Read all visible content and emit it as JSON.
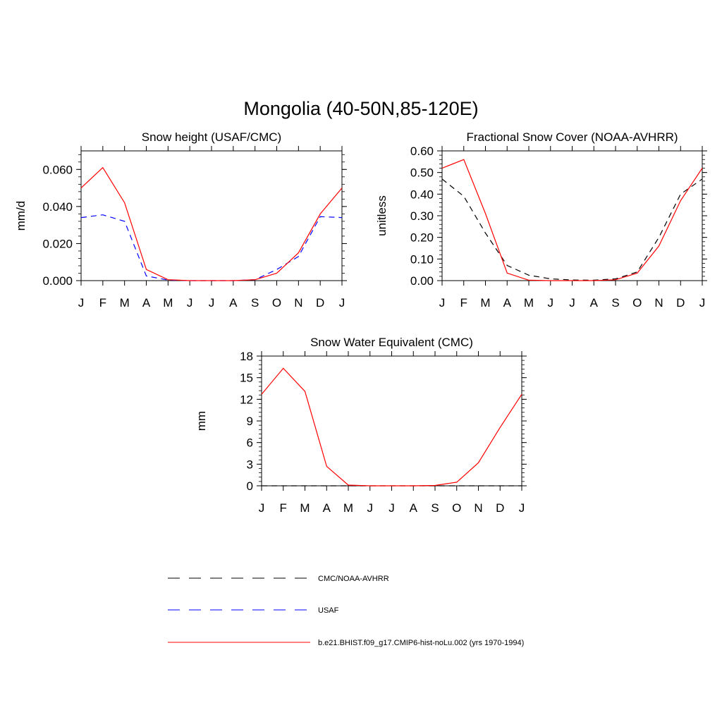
{
  "figure": {
    "title": "Mongolia (40-50N,85-120E)"
  },
  "legend": [
    {
      "label": "CMC/NOAA-AVHRR",
      "color": "#000000",
      "dashed": true
    },
    {
      "label": "USAF",
      "color": "#0000ff",
      "dashed": true
    },
    {
      "label": "b.e21.BHIST.f09_g17.CMIP6-hist-noLu.002 (yrs 1970-1994)",
      "color": "#ff0000",
      "dashed": false
    }
  ],
  "chart_data": [
    {
      "type": "line",
      "title": "Snow height (USAF/CMC)",
      "xlabel": "",
      "ylabel": "mm/d",
      "categories": [
        "J",
        "F",
        "M",
        "A",
        "M",
        "J",
        "J",
        "A",
        "S",
        "O",
        "N",
        "D",
        "J"
      ],
      "ylim": [
        0,
        0.07
      ],
      "yticks": [
        "0.000",
        "0.020",
        "0.040",
        "0.060"
      ],
      "ytick_values": [
        0,
        0.02,
        0.04,
        0.06
      ],
      "grid": false,
      "series": [
        {
          "name": "b.e21.BHIST.f09_g17.CMIP6-hist-noLu.002 (yrs 1970-1994)",
          "color": "#ff0000",
          "dashed": false,
          "values": [
            0.05,
            0.061,
            0.042,
            0.006,
            0.0005,
            0,
            0,
            0,
            0.0005,
            0.004,
            0.015,
            0.036,
            0.05
          ]
        },
        {
          "name": "USAF",
          "color": "#0000ff",
          "dashed": true,
          "values": [
            0.034,
            0.0355,
            0.032,
            0.0025,
            0.0003,
            0,
            0,
            0,
            0.0005,
            0.006,
            0.013,
            0.0345,
            0.034
          ]
        }
      ]
    },
    {
      "type": "line",
      "title": "Fractional Snow Cover (NOAA-AVHRR)",
      "xlabel": "",
      "ylabel": "unitless",
      "categories": [
        "J",
        "F",
        "M",
        "A",
        "M",
        "J",
        "J",
        "A",
        "S",
        "O",
        "N",
        "D",
        "J"
      ],
      "ylim": [
        0,
        0.6
      ],
      "yticks": [
        "0.00",
        "0.10",
        "0.20",
        "0.30",
        "0.40",
        "0.50",
        "0.60"
      ],
      "ytick_values": [
        0,
        0.1,
        0.2,
        0.3,
        0.4,
        0.5,
        0.6
      ],
      "grid": false,
      "series": [
        {
          "name": "b.e21.BHIST.f09_g17.CMIP6-hist-noLu.002 (yrs 1970-1994)",
          "color": "#ff0000",
          "dashed": false,
          "values": [
            0.52,
            0.56,
            0.31,
            0.035,
            0.002,
            0,
            0,
            0,
            0.004,
            0.035,
            0.16,
            0.37,
            0.52
          ]
        },
        {
          "name": "CMC/NOAA-AVHRR",
          "color": "#000000",
          "dashed": true,
          "values": [
            0.47,
            0.39,
            0.22,
            0.07,
            0.025,
            0.008,
            0.003,
            0.002,
            0.008,
            0.04,
            0.2,
            0.4,
            0.47
          ]
        }
      ]
    },
    {
      "type": "line",
      "title": "Snow Water Equivalent (CMC)",
      "xlabel": "",
      "ylabel": "mm",
      "categories": [
        "J",
        "F",
        "M",
        "A",
        "M",
        "J",
        "J",
        "A",
        "S",
        "O",
        "N",
        "D",
        "J"
      ],
      "ylim": [
        0,
        18
      ],
      "yticks": [
        "0",
        "3",
        "6",
        "9",
        "12",
        "15",
        "18"
      ],
      "ytick_values": [
        0,
        3,
        6,
        9,
        12,
        15,
        18
      ],
      "grid": false,
      "series": [
        {
          "name": "b.e21.BHIST.f09_g17.CMIP6-hist-noLu.002 (yrs 1970-1994)",
          "color": "#ff0000",
          "dashed": false,
          "values": [
            12.7,
            16.3,
            13.1,
            2.7,
            0.1,
            0,
            0,
            0,
            0.05,
            0.5,
            3.2,
            8.1,
            12.7
          ]
        },
        {
          "name": "CMC/NOAA-AVHRR",
          "color": "#000000",
          "dashed": true,
          "values": [
            0,
            0,
            0,
            0,
            0,
            0,
            0,
            0,
            0,
            0,
            0,
            0,
            0
          ]
        }
      ]
    }
  ]
}
